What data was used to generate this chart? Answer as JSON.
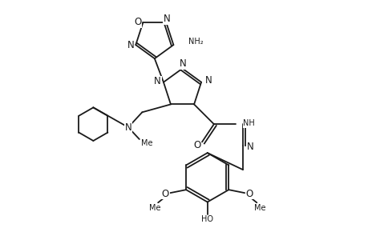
{
  "background_color": "#ffffff",
  "line_color": "#1a1a1a",
  "line_width": 1.3,
  "font_size": 8.5,
  "fig_width": 4.6,
  "fig_height": 3.0,
  "dpi": 100,
  "xlim": [
    0,
    9.2
  ],
  "ylim": [
    0,
    6.0
  ]
}
